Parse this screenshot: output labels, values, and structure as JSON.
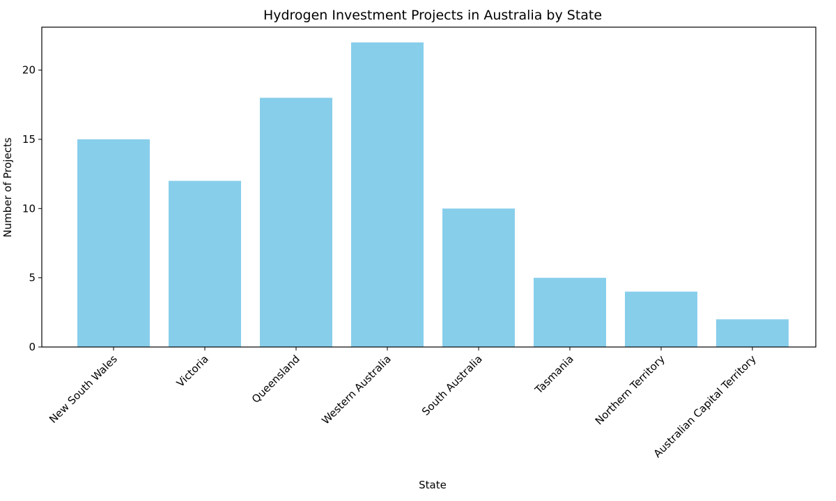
{
  "chart_data": {
    "type": "bar",
    "title": "Hydrogen Investment Projects in Australia by State",
    "x_label": "State",
    "y_label": "Number of Projects",
    "categories": [
      "New South Wales",
      "Victoria",
      "Queensland",
      "Western Australia",
      "South Australia",
      "Tasmania",
      "Northern Territory",
      "Australian Capital Territory"
    ],
    "values": [
      15,
      12,
      18,
      22,
      10,
      5,
      4,
      2
    ],
    "color": "#87ceeb",
    "ylim": [
      0,
      23.1
    ],
    "yticks": [
      0,
      5,
      10,
      15,
      20
    ],
    "grid": false
  }
}
